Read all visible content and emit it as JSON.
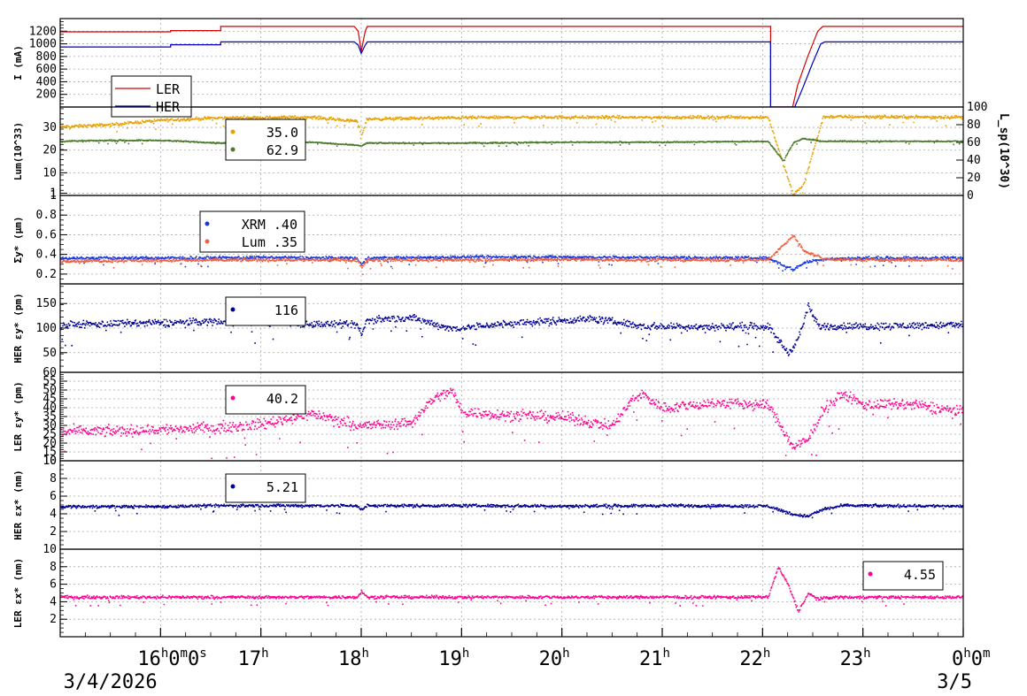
{
  "chart_data": [
    {
      "type": "line",
      "ylabel": "I (mA)",
      "ylim": [
        0,
        1400
      ],
      "yticks": [
        200,
        400,
        600,
        800,
        1000,
        1200
      ],
      "legend": {
        "placement": "bottom-left",
        "entries": [
          {
            "label": "LER",
            "color": "#d40000"
          },
          {
            "label": "HER",
            "color": "#0000c8"
          }
        ]
      },
      "series": [
        {
          "name": "LER",
          "color": "#d40000",
          "style": "line",
          "points": [
            [
              15.0,
              1190
            ],
            [
              16.1,
              1190
            ],
            [
              16.1,
              1210
            ],
            [
              16.6,
              1210
            ],
            [
              16.6,
              1275
            ],
            [
              17.93,
              1275
            ],
            [
              17.97,
              1200
            ],
            [
              18.0,
              880
            ],
            [
              18.04,
              1200
            ],
            [
              18.06,
              1275
            ],
            [
              22.08,
              1275
            ],
            [
              22.08,
              0
            ],
            [
              22.3,
              0
            ],
            [
              22.35,
              350
            ],
            [
              22.45,
              800
            ],
            [
              22.55,
              1200
            ],
            [
              22.6,
              1275
            ],
            [
              24.0,
              1275
            ]
          ]
        },
        {
          "name": "HER",
          "color": "#0000c8",
          "style": "line",
          "points": [
            [
              15.0,
              950
            ],
            [
              16.1,
              950
            ],
            [
              16.1,
              985
            ],
            [
              16.6,
              985
            ],
            [
              16.6,
              1030
            ],
            [
              17.93,
              1030
            ],
            [
              17.97,
              980
            ],
            [
              18.0,
              850
            ],
            [
              18.04,
              980
            ],
            [
              18.06,
              1030
            ],
            [
              22.08,
              1030
            ],
            [
              22.08,
              0
            ],
            [
              22.32,
              0
            ],
            [
              22.4,
              300
            ],
            [
              22.5,
              700
            ],
            [
              22.58,
              1000
            ],
            [
              22.62,
              1030
            ],
            [
              24.0,
              1030
            ]
          ]
        }
      ]
    },
    {
      "type": "scatter",
      "ylabel": "Lum(10^33)",
      "y2label": "L_sp(10^30)",
      "ylim": [
        0,
        39
      ],
      "yticks": [
        1,
        10,
        20,
        30
      ],
      "y2lim": [
        0,
        100
      ],
      "y2ticks": [
        0,
        20,
        40,
        60,
        80,
        100
      ],
      "legend": {
        "placement": "top-center",
        "entries": [
          {
            "label": "35.0",
            "color": "#e8a000"
          },
          {
            "label": "62.9",
            "color": "#4a7a2a"
          }
        ]
      },
      "series": [
        {
          "color": "#e8a000",
          "axis": "left",
          "points": [
            [
              15.0,
              30.5
            ],
            [
              15.5,
              31.5
            ],
            [
              16.0,
              33.5
            ],
            [
              16.6,
              34.5
            ],
            [
              17.5,
              34.8
            ],
            [
              17.95,
              33
            ],
            [
              18.0,
              27
            ],
            [
              18.05,
              34
            ],
            [
              19.0,
              34.6
            ],
            [
              20.0,
              34.8
            ],
            [
              21.0,
              34.7
            ],
            [
              22.05,
              34.8
            ],
            [
              22.3,
              0.5
            ],
            [
              22.4,
              5
            ],
            [
              22.5,
              20
            ],
            [
              22.6,
              35
            ],
            [
              23.0,
              35
            ],
            [
              24.0,
              34.8
            ]
          ]
        },
        {
          "color": "#4a7a2a",
          "axis": "right",
          "points": [
            [
              15.0,
              62
            ],
            [
              15.5,
              63
            ],
            [
              16.0,
              63
            ],
            [
              16.6,
              60
            ],
            [
              17.5,
              61
            ],
            [
              18.0,
              57
            ],
            [
              18.05,
              60
            ],
            [
              19.0,
              60
            ],
            [
              20.0,
              61
            ],
            [
              21.0,
              61
            ],
            [
              22.05,
              62
            ],
            [
              22.2,
              40
            ],
            [
              22.3,
              60
            ],
            [
              22.4,
              65
            ],
            [
              22.6,
              62
            ],
            [
              23.0,
              62
            ],
            [
              24.0,
              62
            ]
          ]
        }
      ]
    },
    {
      "type": "scatter",
      "ylabel": "Σy* (μm)",
      "ylim": [
        0.1,
        1.0
      ],
      "yticks": [
        0.2,
        0.4,
        0.6,
        0.8,
        1
      ],
      "legend": {
        "placement": "top-left",
        "entries": [
          {
            "label": "XRM  .40",
            "color": "#1a3ae0"
          },
          {
            "label": "Lum  .35",
            "color": "#ee6040"
          }
        ]
      },
      "series": [
        {
          "color": "#1a3ae0",
          "points": [
            [
              15.0,
              0.37
            ],
            [
              16.0,
              0.37
            ],
            [
              17.0,
              0.375
            ],
            [
              17.95,
              0.37
            ],
            [
              18.0,
              0.3
            ],
            [
              18.05,
              0.37
            ],
            [
              19.0,
              0.38
            ],
            [
              20.0,
              0.38
            ],
            [
              21.0,
              0.375
            ],
            [
              22.05,
              0.37
            ],
            [
              22.3,
              0.25
            ],
            [
              22.4,
              0.32
            ],
            [
              22.6,
              0.36
            ],
            [
              23.0,
              0.37
            ],
            [
              24.0,
              0.37
            ]
          ]
        },
        {
          "color": "#ee6040",
          "points": [
            [
              15.0,
              0.34
            ],
            [
              16.0,
              0.345
            ],
            [
              17.0,
              0.35
            ],
            [
              17.95,
              0.35
            ],
            [
              18.0,
              0.28
            ],
            [
              18.05,
              0.35
            ],
            [
              19.0,
              0.35
            ],
            [
              20.0,
              0.355
            ],
            [
              21.0,
              0.35
            ],
            [
              22.05,
              0.35
            ],
            [
              22.3,
              0.6
            ],
            [
              22.4,
              0.45
            ],
            [
              22.6,
              0.36
            ],
            [
              23.0,
              0.35
            ],
            [
              24.0,
              0.35
            ]
          ]
        }
      ]
    },
    {
      "type": "scatter",
      "ylabel": "HER εy* (pm)",
      "ylim": [
        10,
        190
      ],
      "yticks": [
        50,
        100,
        150
      ],
      "legend": {
        "placement": "top-center",
        "entries": [
          {
            "label": "116",
            "color": "#000090"
          }
        ]
      },
      "series": [
        {
          "color": "#000090",
          "points": [
            [
              15.0,
              108
            ],
            [
              15.5,
              110
            ],
            [
              16.0,
              112
            ],
            [
              16.5,
              115
            ],
            [
              17.0,
              114
            ],
            [
              17.5,
              110
            ],
            [
              17.95,
              108
            ],
            [
              18.0,
              88
            ],
            [
              18.05,
              118
            ],
            [
              18.5,
              122
            ],
            [
              18.9,
              100
            ],
            [
              19.3,
              108
            ],
            [
              19.8,
              115
            ],
            [
              20.3,
              120
            ],
            [
              20.6,
              112
            ],
            [
              20.8,
              105
            ],
            [
              21.5,
              104
            ],
            [
              22.05,
              105
            ],
            [
              22.25,
              50
            ],
            [
              22.35,
              80
            ],
            [
              22.45,
              145
            ],
            [
              22.55,
              105
            ],
            [
              23.0,
              105
            ],
            [
              24.0,
              108
            ]
          ]
        }
      ]
    },
    {
      "type": "scatter",
      "ylabel": "LER εy* (pm)",
      "ylim": [
        10,
        60
      ],
      "yticks": [
        10,
        15,
        20,
        25,
        30,
        35,
        40,
        45,
        50,
        55,
        60
      ],
      "legend": {
        "placement": "top-center",
        "entries": [
          {
            "label": "40.2",
            "color": "#ff0090"
          }
        ]
      },
      "series": [
        {
          "color": "#ff0090",
          "points": [
            [
              15.0,
              27
            ],
            [
              15.5,
              27
            ],
            [
              16.0,
              28
            ],
            [
              16.5,
              29
            ],
            [
              17.0,
              31
            ],
            [
              17.5,
              37
            ],
            [
              18.0,
              30
            ],
            [
              18.5,
              32
            ],
            [
              18.7,
              45
            ],
            [
              18.9,
              50
            ],
            [
              19.0,
              38
            ],
            [
              19.5,
              36
            ],
            [
              20.0,
              35
            ],
            [
              20.5,
              30
            ],
            [
              20.7,
              45
            ],
            [
              20.8,
              48
            ],
            [
              21.0,
              40
            ],
            [
              21.5,
              43
            ],
            [
              22.05,
              42
            ],
            [
              22.3,
              18
            ],
            [
              22.45,
              22
            ],
            [
              22.6,
              40
            ],
            [
              22.8,
              48
            ],
            [
              23.0,
              42
            ],
            [
              23.5,
              42
            ],
            [
              24.0,
              38
            ]
          ]
        }
      ]
    },
    {
      "type": "scatter",
      "ylabel": "HER εx* (nm)",
      "ylim": [
        0,
        10
      ],
      "yticks": [
        2,
        4,
        6,
        8,
        10
      ],
      "legend": {
        "placement": "top-center",
        "entries": [
          {
            "label": "5.21",
            "color": "#000090"
          }
        ]
      },
      "series": [
        {
          "color": "#000090",
          "points": [
            [
              15.0,
              4.9
            ],
            [
              16.0,
              4.9
            ],
            [
              16.6,
              5.0
            ],
            [
              17.95,
              5.0
            ],
            [
              18.0,
              4.5
            ],
            [
              18.05,
              5.0
            ],
            [
              19.0,
              5.0
            ],
            [
              20.0,
              4.95
            ],
            [
              21.0,
              5.0
            ],
            [
              22.05,
              4.95
            ],
            [
              22.3,
              4.0
            ],
            [
              22.45,
              3.8
            ],
            [
              22.6,
              4.6
            ],
            [
              22.8,
              5.0
            ],
            [
              24.0,
              4.95
            ]
          ]
        }
      ]
    },
    {
      "type": "scatter",
      "ylabel": "LER εx* (nm)",
      "ylim": [
        0,
        10
      ],
      "yticks": [
        2,
        4,
        6,
        8,
        10
      ],
      "legend": {
        "placement": "top-right",
        "entries": [
          {
            "label": "4.55",
            "color": "#ff0090"
          }
        ]
      },
      "series": [
        {
          "color": "#ff0090",
          "points": [
            [
              15.0,
              4.6
            ],
            [
              16.0,
              4.6
            ],
            [
              17.0,
              4.6
            ],
            [
              17.95,
              4.6
            ],
            [
              18.0,
              5.3
            ],
            [
              18.05,
              4.6
            ],
            [
              19.0,
              4.6
            ],
            [
              20.0,
              4.6
            ],
            [
              21.0,
              4.6
            ],
            [
              22.05,
              4.6
            ],
            [
              22.15,
              8
            ],
            [
              22.25,
              6
            ],
            [
              22.35,
              3
            ],
            [
              22.45,
              5
            ],
            [
              22.55,
              4.4
            ],
            [
              22.7,
              4.6
            ],
            [
              24.0,
              4.6
            ]
          ]
        }
      ]
    }
  ],
  "x_axis": {
    "start": 15.0,
    "end": 24.0,
    "ticks": [
      {
        "x": 16,
        "label": "16h0m0s"
      },
      {
        "x": 17,
        "label": "17h"
      },
      {
        "x": 18,
        "label": "18h"
      },
      {
        "x": 19,
        "label": "19h"
      },
      {
        "x": 20,
        "label": "20h"
      },
      {
        "x": 21,
        "label": "21h"
      },
      {
        "x": 22,
        "label": "22h"
      },
      {
        "x": 23,
        "label": "23h"
      },
      {
        "x": 24,
        "label": "0h0m"
      }
    ],
    "dates": [
      {
        "x": 15.5,
        "label": "3/4/2026"
      },
      {
        "x": 24,
        "label": "3/5"
      }
    ]
  }
}
